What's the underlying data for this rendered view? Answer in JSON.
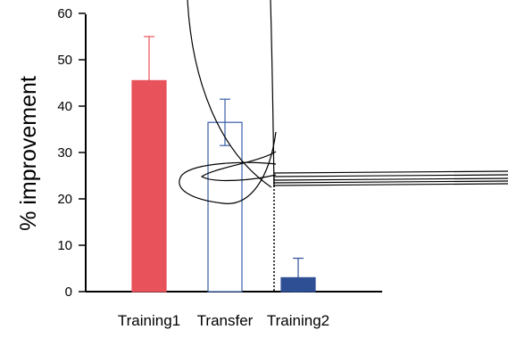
{
  "chart_data": {
    "type": "bar",
    "title": "",
    "xlabel": "",
    "ylabel": "% improvement",
    "ylim": [
      0,
      60
    ],
    "yticks": [
      "0",
      "10",
      "20",
      "30",
      "40",
      "50",
      "60"
    ],
    "categories": [
      "Training1",
      "Transfer",
      "Training2"
    ],
    "values": [
      45.5,
      36.5,
      3
    ],
    "error": [
      9.5,
      5,
      4.2
    ],
    "bar_styles": [
      {
        "fill": "#e8525a",
        "stroke": "#e8525a",
        "error_color": "#e8525a"
      },
      {
        "fill": "#ffffff",
        "stroke": "#3a5fa8",
        "error_color": "#3a5fa8"
      },
      {
        "fill": "#2f4f95",
        "stroke": "#2f4f95",
        "error_color": "#2f4f95"
      }
    ],
    "grid": false,
    "legend": "none"
  }
}
